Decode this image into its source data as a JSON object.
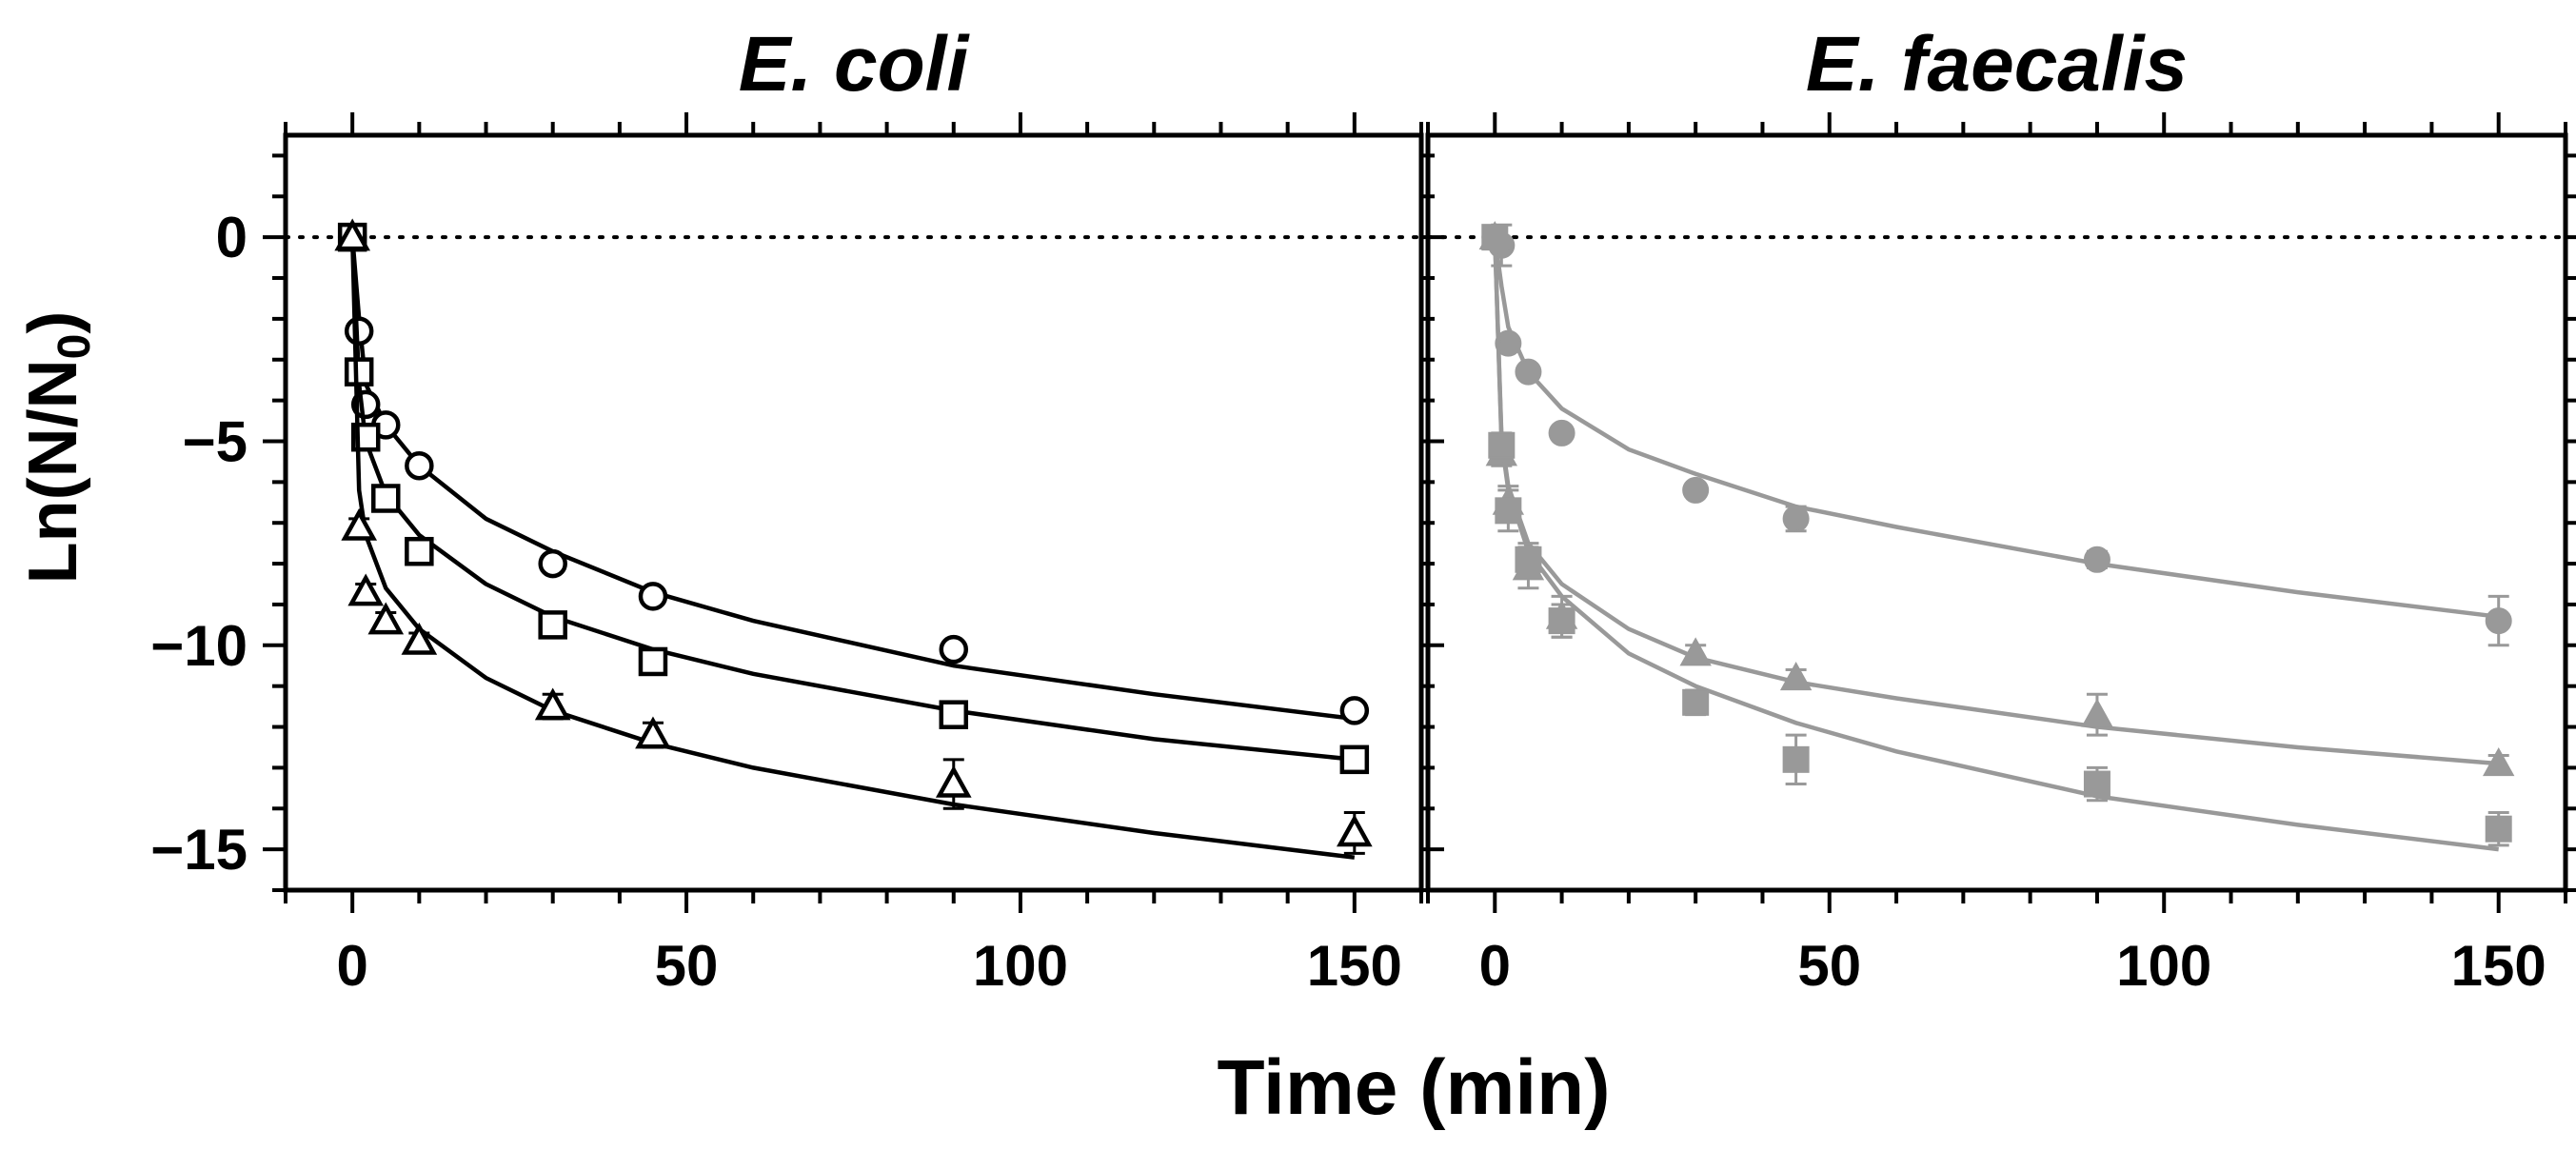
{
  "figure": {
    "ylabel_main": "Ln(N/N",
    "ylabel_sub": "0",
    "ylabel_close": ")",
    "xlabel": "Time (min)"
  },
  "chart_data": [
    {
      "type": "scatter",
      "title": "E. coli",
      "xlabel": "Time (min)",
      "ylabel": "Ln(N/N0)",
      "xlim": [
        -10,
        160
      ],
      "ylim": [
        -16,
        2.5
      ],
      "xticks": [
        0,
        50,
        100,
        150
      ],
      "xtick_labels": [
        "0",
        "50",
        "100",
        "150"
      ],
      "yticks": [
        0,
        -5,
        -10,
        -15
      ],
      "ytick_labels": [
        "0",
        "−5",
        "−10",
        "−15"
      ],
      "reference_line_y": 0,
      "color": "#000000",
      "series": [
        {
          "name": "circle",
          "marker": "circle-open",
          "x": [
            0,
            1,
            2,
            5,
            10,
            30,
            45,
            90,
            150
          ],
          "y": [
            0,
            -2.3,
            -4.1,
            -4.6,
            -5.6,
            -8.0,
            -8.8,
            -10.1,
            -11.6
          ],
          "err": [
            0,
            0.1,
            0.1,
            0.1,
            0.1,
            0.1,
            0.1,
            0.1,
            0.1
          ],
          "fit_x": [
            0,
            1,
            2,
            5,
            10,
            20,
            30,
            45,
            60,
            90,
            120,
            150
          ],
          "fit_y": [
            0,
            -2.0,
            -3.6,
            -4.6,
            -5.6,
            -6.9,
            -7.7,
            -8.7,
            -9.4,
            -10.5,
            -11.2,
            -11.8
          ]
        },
        {
          "name": "square",
          "marker": "square-open",
          "x": [
            0,
            1,
            2,
            5,
            10,
            30,
            45,
            90,
            150
          ],
          "y": [
            0,
            -3.3,
            -4.9,
            -6.4,
            -7.7,
            -9.5,
            -10.4,
            -11.7,
            -12.8
          ],
          "err": [
            0,
            0.1,
            0.1,
            0.1,
            0.1,
            0.1,
            0.1,
            0.1,
            0.1
          ],
          "fit_x": [
            0,
            1,
            2,
            5,
            10,
            20,
            30,
            45,
            60,
            90,
            120,
            150
          ],
          "fit_y": [
            0,
            -3.6,
            -5.0,
            -6.3,
            -7.3,
            -8.5,
            -9.3,
            -10.1,
            -10.7,
            -11.6,
            -12.3,
            -12.8
          ]
        },
        {
          "name": "triangle",
          "marker": "triangle-open",
          "x": [
            0,
            1,
            2,
            5,
            10,
            30,
            45,
            90,
            150
          ],
          "y": [
            0,
            -7.1,
            -8.7,
            -9.4,
            -9.9,
            -11.5,
            -12.2,
            -13.4,
            -14.6
          ],
          "err": [
            0,
            0.2,
            0.2,
            0.2,
            0.2,
            0.3,
            0.3,
            0.6,
            0.5
          ],
          "fit_x": [
            0,
            1,
            2,
            5,
            10,
            20,
            30,
            45,
            60,
            90,
            120,
            150
          ],
          "fit_y": [
            0,
            -6.2,
            -7.3,
            -8.6,
            -9.6,
            -10.8,
            -11.6,
            -12.4,
            -13.0,
            -13.9,
            -14.6,
            -15.2
          ]
        }
      ]
    },
    {
      "type": "scatter",
      "title": "E. faecalis",
      "xlabel": "Time (min)",
      "ylabel": "Ln(N/N0)",
      "xlim": [
        -10,
        160
      ],
      "ylim": [
        -16,
        2.5
      ],
      "xticks": [
        0,
        50,
        100,
        150
      ],
      "xtick_labels": [
        "0",
        "50",
        "100",
        "150"
      ],
      "yticks": [
        0,
        -5,
        -10,
        -15
      ],
      "ytick_labels": [
        "0",
        "−5",
        "−10",
        "−15"
      ],
      "reference_line_y": 0,
      "color": "#999999",
      "series": [
        {
          "name": "circle",
          "marker": "circle-filled",
          "x": [
            0,
            1,
            2,
            5,
            10,
            30,
            45,
            90,
            150
          ],
          "y": [
            0,
            -0.2,
            -2.6,
            -3.3,
            -4.8,
            -6.2,
            -6.9,
            -7.9,
            -9.4
          ],
          "err": [
            0,
            0.5,
            0.1,
            0.1,
            0.1,
            0.1,
            0.3,
            0.2,
            0.6
          ],
          "fit_x": [
            0,
            1,
            2,
            5,
            10,
            20,
            30,
            45,
            60,
            90,
            120,
            150
          ],
          "fit_y": [
            0,
            -1.2,
            -2.2,
            -3.3,
            -4.2,
            -5.2,
            -5.8,
            -6.6,
            -7.1,
            -8.0,
            -8.7,
            -9.3
          ]
        },
        {
          "name": "triangle",
          "marker": "triangle-filled",
          "x": [
            0,
            1,
            2,
            5,
            10,
            30,
            45,
            90,
            150
          ],
          "y": [
            0,
            -5.3,
            -6.5,
            -8.1,
            -9.3,
            -10.2,
            -10.8,
            -11.7,
            -12.9
          ],
          "err": [
            0,
            0.3,
            0.4,
            0.5,
            0.5,
            0.2,
            0.2,
            0.5,
            0.2
          ],
          "fit_x": [
            0,
            1,
            2,
            5,
            10,
            20,
            30,
            45,
            60,
            90,
            120,
            150
          ],
          "fit_y": [
            0,
            -4.9,
            -6.1,
            -7.5,
            -8.5,
            -9.6,
            -10.3,
            -10.9,
            -11.3,
            -12.0,
            -12.5,
            -12.9
          ]
        },
        {
          "name": "square",
          "marker": "square-filled",
          "x": [
            0,
            1,
            2,
            5,
            10,
            30,
            45,
            90,
            150
          ],
          "y": [
            0,
            -5.1,
            -6.7,
            -7.9,
            -9.4,
            -11.4,
            -12.8,
            -13.4,
            -14.5
          ],
          "err": [
            0,
            0.3,
            0.5,
            0.4,
            0.4,
            0.3,
            0.6,
            0.4,
            0.4
          ],
          "fit_x": [
            0,
            1,
            2,
            5,
            10,
            20,
            30,
            45,
            60,
            90,
            120,
            150
          ],
          "fit_y": [
            0,
            -5.0,
            -6.2,
            -7.7,
            -8.8,
            -10.2,
            -11.0,
            -11.9,
            -12.6,
            -13.7,
            -14.4,
            -15.0
          ]
        }
      ]
    }
  ]
}
